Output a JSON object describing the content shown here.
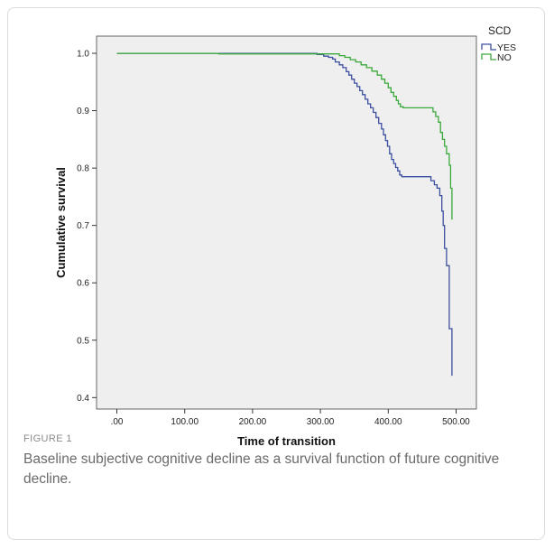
{
  "figure": {
    "label": "FIGURE 1",
    "caption": "Baseline subjective cognitive decline as a survival function of future cognitive decline."
  },
  "chart_data": {
    "type": "line",
    "title": "",
    "xlabel": "Time of transition",
    "ylabel": "Cumulative survival",
    "xlim": [
      -30,
      530
    ],
    "ylim": [
      0.38,
      1.03
    ],
    "x_ticks": [
      0,
      100,
      200,
      300,
      400,
      500
    ],
    "x_tick_labels": [
      ".00",
      "100.00",
      "200.00",
      "300.00",
      "400.00",
      "500.00"
    ],
    "y_ticks": [
      0.4,
      0.5,
      0.6,
      0.7,
      0.8,
      0.9,
      1.0
    ],
    "y_tick_labels": [
      "0.4",
      "0.5",
      "0.6",
      "0.7",
      "0.8",
      "0.9",
      "1.0"
    ],
    "grid": false,
    "legend": {
      "title": "SCD",
      "placement": "right"
    },
    "background_color": "#efefef",
    "series": [
      {
        "name": "YES",
        "color": "#3b4fa0",
        "step": true,
        "points": [
          [
            0,
            1.0
          ],
          [
            280,
            1.0
          ],
          [
            295,
            0.998
          ],
          [
            305,
            0.995
          ],
          [
            312,
            0.993
          ],
          [
            318,
            0.99
          ],
          [
            322,
            0.985
          ],
          [
            328,
            0.98
          ],
          [
            333,
            0.975
          ],
          [
            338,
            0.968
          ],
          [
            342,
            0.962
          ],
          [
            346,
            0.955
          ],
          [
            350,
            0.948
          ],
          [
            354,
            0.942
          ],
          [
            358,
            0.935
          ],
          [
            362,
            0.928
          ],
          [
            366,
            0.92
          ],
          [
            370,
            0.912
          ],
          [
            374,
            0.905
          ],
          [
            378,
            0.897
          ],
          [
            382,
            0.888
          ],
          [
            386,
            0.878
          ],
          [
            390,
            0.868
          ],
          [
            393,
            0.858
          ],
          [
            396,
            0.848
          ],
          [
            399,
            0.838
          ],
          [
            402,
            0.825
          ],
          [
            405,
            0.815
          ],
          [
            408,
            0.808
          ],
          [
            411,
            0.801
          ],
          [
            414,
            0.795
          ],
          [
            417,
            0.788
          ],
          [
            420,
            0.785
          ],
          [
            460,
            0.785
          ],
          [
            463,
            0.778
          ],
          [
            468,
            0.771
          ],
          [
            472,
            0.765
          ],
          [
            476,
            0.752
          ],
          [
            479,
            0.725
          ],
          [
            481,
            0.7
          ],
          [
            483,
            0.66
          ],
          [
            486,
            0.63
          ],
          [
            490,
            0.52
          ],
          [
            494,
            0.52
          ],
          [
            494,
            0.438
          ]
        ]
      },
      {
        "name": "NO",
        "color": "#3aa83a",
        "step": true,
        "points": [
          [
            0,
            1.0
          ],
          [
            150,
            1.0
          ],
          [
            150,
            0.999
          ],
          [
            320,
            0.999
          ],
          [
            328,
            0.996
          ],
          [
            336,
            0.993
          ],
          [
            344,
            0.989
          ],
          [
            352,
            0.985
          ],
          [
            360,
            0.98
          ],
          [
            368,
            0.975
          ],
          [
            376,
            0.969
          ],
          [
            384,
            0.962
          ],
          [
            390,
            0.955
          ],
          [
            395,
            0.948
          ],
          [
            400,
            0.94
          ],
          [
            404,
            0.932
          ],
          [
            408,
            0.925
          ],
          [
            412,
            0.918
          ],
          [
            415,
            0.912
          ],
          [
            418,
            0.907
          ],
          [
            422,
            0.905
          ],
          [
            463,
            0.905
          ],
          [
            466,
            0.898
          ],
          [
            470,
            0.89
          ],
          [
            474,
            0.88
          ],
          [
            477,
            0.862
          ],
          [
            480,
            0.85
          ],
          [
            483,
            0.838
          ],
          [
            486,
            0.825
          ],
          [
            490,
            0.805
          ],
          [
            492,
            0.765
          ],
          [
            494,
            0.765
          ],
          [
            494,
            0.71
          ]
        ]
      }
    ]
  }
}
